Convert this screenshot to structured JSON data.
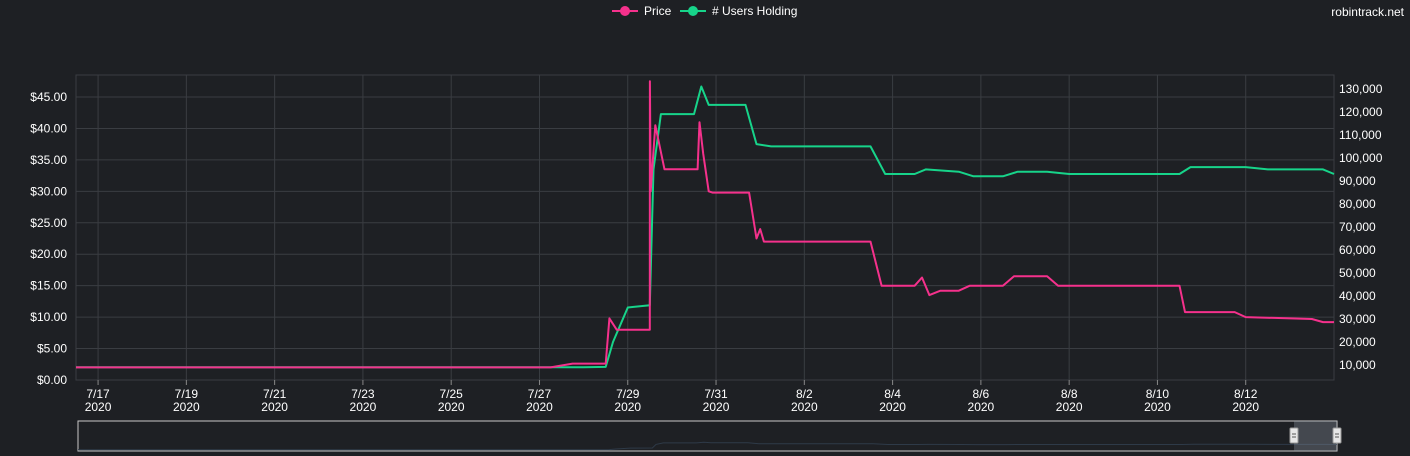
{
  "site_label": "robintrack.net",
  "colors": {
    "background": "#1e2024",
    "grid": "#3a3d42",
    "price": "#f5318c",
    "users": "#17d48a",
    "axis_text": "#ffffff"
  },
  "chart_data": {
    "type": "line",
    "legend_position": "top-center",
    "grid": true,
    "x_range": [
      "2020-07-16 12:00",
      "2020-08-14"
    ],
    "x_ticks": [
      {
        "date": "2020-07-17",
        "label1": "7/17",
        "label2": "2020"
      },
      {
        "date": "2020-07-19",
        "label1": "7/19",
        "label2": "2020"
      },
      {
        "date": "2020-07-21",
        "label1": "7/21",
        "label2": "2020"
      },
      {
        "date": "2020-07-23",
        "label1": "7/23",
        "label2": "2020"
      },
      {
        "date": "2020-07-25",
        "label1": "7/25",
        "label2": "2020"
      },
      {
        "date": "2020-07-27",
        "label1": "7/27",
        "label2": "2020"
      },
      {
        "date": "2020-07-29",
        "label1": "7/29",
        "label2": "2020"
      },
      {
        "date": "2020-07-31",
        "label1": "7/31",
        "label2": "2020"
      },
      {
        "date": "2020-08-02",
        "label1": "8/2",
        "label2": "2020"
      },
      {
        "date": "2020-08-04",
        "label1": "8/4",
        "label2": "2020"
      },
      {
        "date": "2020-08-06",
        "label1": "8/6",
        "label2": "2020"
      },
      {
        "date": "2020-08-08",
        "label1": "8/8",
        "label2": "2020"
      },
      {
        "date": "2020-08-10",
        "label1": "8/10",
        "label2": "2020"
      },
      {
        "date": "2020-08-12",
        "label1": "8/12",
        "label2": "2020"
      }
    ],
    "y_left": {
      "range": [
        0,
        48.5
      ],
      "ticks": [
        {
          "value": 0,
          "label": "$0.00"
        },
        {
          "value": 5,
          "label": "$5.00"
        },
        {
          "value": 10,
          "label": "$10.00"
        },
        {
          "value": 15,
          "label": "$15.00"
        },
        {
          "value": 20,
          "label": "$20.00"
        },
        {
          "value": 25,
          "label": "$25.00"
        },
        {
          "value": 30,
          "label": "$30.00"
        },
        {
          "value": 35,
          "label": "$35.00"
        },
        {
          "value": 40,
          "label": "$40.00"
        },
        {
          "value": 45,
          "label": "$45.00"
        }
      ]
    },
    "y_right": {
      "range": [
        3500,
        136000
      ],
      "ticks": [
        {
          "value": 10000,
          "label": "10,000"
        },
        {
          "value": 20000,
          "label": "20,000"
        },
        {
          "value": 30000,
          "label": "30,000"
        },
        {
          "value": 40000,
          "label": "40,000"
        },
        {
          "value": 50000,
          "label": "50,000"
        },
        {
          "value": 60000,
          "label": "60,000"
        },
        {
          "value": 70000,
          "label": "70,000"
        },
        {
          "value": 80000,
          "label": "80,000"
        },
        {
          "value": 90000,
          "label": "90,000"
        },
        {
          "value": 100000,
          "label": "100,000"
        },
        {
          "value": 110000,
          "label": "110,000"
        },
        {
          "value": 120000,
          "label": "120,000"
        },
        {
          "value": 130000,
          "label": "130,000"
        }
      ]
    },
    "series": [
      {
        "name": "Price",
        "axis": "left",
        "color": "#f5318c",
        "points": [
          [
            "2020-07-16 12:00",
            2.0
          ],
          [
            "2020-07-18 00:00",
            2.0
          ],
          [
            "2020-07-20 00:00",
            2.0
          ],
          [
            "2020-07-22 00:00",
            2.0
          ],
          [
            "2020-07-24 00:00",
            2.0
          ],
          [
            "2020-07-26 00:00",
            2.0
          ],
          [
            "2020-07-27 06:00",
            2.0
          ],
          [
            "2020-07-27 18:00",
            2.6
          ],
          [
            "2020-07-28 12:00",
            2.6
          ],
          [
            "2020-07-28 14:00",
            9.8
          ],
          [
            "2020-07-28 18:00",
            8.0
          ],
          [
            "2020-07-29 12:00",
            8.0
          ],
          [
            "2020-07-29 12:01",
            47.5
          ],
          [
            "2020-07-29 12:30",
            30.0
          ],
          [
            "2020-07-29 15:00",
            40.5
          ],
          [
            "2020-07-29 20:00",
            33.5
          ],
          [
            "2020-07-30 14:00",
            33.5
          ],
          [
            "2020-07-30 15:00",
            41.0
          ],
          [
            "2020-07-30 17:00",
            36.0
          ],
          [
            "2020-07-30 20:00",
            30.0
          ],
          [
            "2020-07-30 22:00",
            29.8
          ],
          [
            "2020-07-31 18:00",
            29.8
          ],
          [
            "2020-07-31 22:00",
            22.5
          ],
          [
            "2020-08-01 00:00",
            24.0
          ],
          [
            "2020-08-01 02:00",
            22.0
          ],
          [
            "2020-08-03 12:00",
            22.0
          ],
          [
            "2020-08-03 18:00",
            15.0
          ],
          [
            "2020-08-04 12:00",
            15.0
          ],
          [
            "2020-08-04 16:00",
            16.3
          ],
          [
            "2020-08-04 20:00",
            13.5
          ],
          [
            "2020-08-05 02:00",
            14.2
          ],
          [
            "2020-08-05 12:00",
            14.2
          ],
          [
            "2020-08-05 18:00",
            15.0
          ],
          [
            "2020-08-06 12:00",
            15.0
          ],
          [
            "2020-08-06 18:00",
            16.5
          ],
          [
            "2020-08-07 12:00",
            16.5
          ],
          [
            "2020-08-07 18:00",
            15.0
          ],
          [
            "2020-08-10 12:00",
            15.0
          ],
          [
            "2020-08-10 15:00",
            10.8
          ],
          [
            "2020-08-11 18:00",
            10.8
          ],
          [
            "2020-08-12 00:00",
            10.0
          ],
          [
            "2020-08-13 12:00",
            9.7
          ],
          [
            "2020-08-13 18:00",
            9.2
          ],
          [
            "2020-08-14 00:00",
            9.2
          ]
        ]
      },
      {
        "name": "# Users Holding",
        "axis": "right",
        "color": "#17d48a",
        "points": [
          [
            "2020-07-16 12:00",
            9000
          ],
          [
            "2020-07-20 00:00",
            9000
          ],
          [
            "2020-07-24 00:00",
            9000
          ],
          [
            "2020-07-28 00:00",
            9000
          ],
          [
            "2020-07-28 12:00",
            9200
          ],
          [
            "2020-07-28 16:00",
            20000
          ],
          [
            "2020-07-29 00:00",
            35000
          ],
          [
            "2020-07-29 12:00",
            36000
          ],
          [
            "2020-07-29 14:00",
            95000
          ],
          [
            "2020-07-29 18:00",
            119000
          ],
          [
            "2020-07-30 12:00",
            119000
          ],
          [
            "2020-07-30 16:00",
            131000
          ],
          [
            "2020-07-30 20:00",
            123000
          ],
          [
            "2020-07-31 16:00",
            123000
          ],
          [
            "2020-07-31 22:00",
            106000
          ],
          [
            "2020-08-01 06:00",
            105000
          ],
          [
            "2020-08-03 12:00",
            105000
          ],
          [
            "2020-08-03 20:00",
            93000
          ],
          [
            "2020-08-04 12:00",
            93000
          ],
          [
            "2020-08-04 18:00",
            95000
          ],
          [
            "2020-08-05 12:00",
            94000
          ],
          [
            "2020-08-05 20:00",
            92000
          ],
          [
            "2020-08-06 12:00",
            92000
          ],
          [
            "2020-08-06 20:00",
            94000
          ],
          [
            "2020-08-07 12:00",
            94000
          ],
          [
            "2020-08-08 00:00",
            93000
          ],
          [
            "2020-08-10 12:00",
            93000
          ],
          [
            "2020-08-10 18:00",
            96000
          ],
          [
            "2020-08-12 00:00",
            96000
          ],
          [
            "2020-08-12 12:00",
            95000
          ],
          [
            "2020-08-13 18:00",
            95000
          ],
          [
            "2020-08-14 00:00",
            93000
          ]
        ]
      }
    ]
  }
}
